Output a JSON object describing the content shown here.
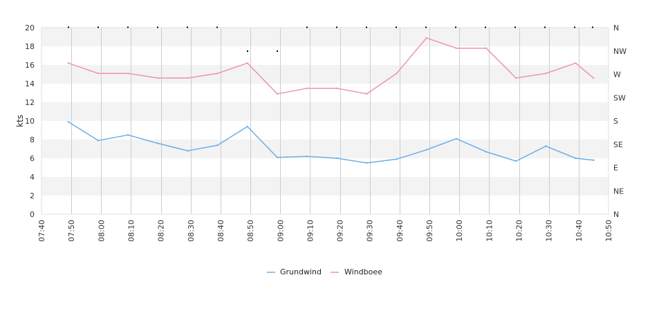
{
  "chart_data": {
    "type": "line",
    "title": "",
    "xlabel": "",
    "ylabel": "kts",
    "ylim": [
      0,
      20
    ],
    "xlim": [
      "07:40",
      "10:50"
    ],
    "y_ticks": [
      "0",
      "2",
      "4",
      "6",
      "8",
      "10",
      "12",
      "14",
      "16",
      "18",
      "20"
    ],
    "x_ticks": [
      "07:40",
      "07:50",
      "08:00",
      "08:10",
      "08:20",
      "08:30",
      "08:40",
      "08:50",
      "09:00",
      "09:10",
      "09:20",
      "09:30",
      "09:40",
      "09:50",
      "10:00",
      "10:10",
      "10:20",
      "10:30",
      "10:40",
      "10:50"
    ],
    "right_axis_labels": [
      "N",
      "NE",
      "E",
      "SE",
      "S",
      "SW",
      "W",
      "NW",
      "N"
    ],
    "grid": true,
    "legend_position": "bottom-center",
    "x": [
      "07:49",
      "07:59",
      "08:09",
      "08:19",
      "08:29",
      "08:39",
      "08:49",
      "08:59",
      "09:09",
      "09:19",
      "09:29",
      "09:39",
      "09:49",
      "09:59",
      "10:09",
      "10:19",
      "10:29",
      "10:39",
      "10:45"
    ],
    "series": [
      {
        "name": "Grundwind",
        "color": "#6aaee8",
        "values": [
          9.9,
          7.9,
          8.5,
          7.6,
          6.8,
          7.4,
          9.4,
          6.1,
          6.2,
          6.0,
          5.5,
          5.9,
          6.9,
          8.1,
          6.7,
          5.7,
          7.3,
          6.0,
          5.8
        ]
      },
      {
        "name": "Windboee",
        "color": "#ee8fbd",
        "values": [
          16.2,
          15.1,
          15.1,
          14.6,
          14.6,
          15.1,
          16.2,
          12.9,
          13.5,
          13.5,
          12.9,
          15.1,
          18.9,
          17.8,
          17.8,
          14.6,
          15.1,
          16.2,
          14.6
        ]
      }
    ]
  }
}
